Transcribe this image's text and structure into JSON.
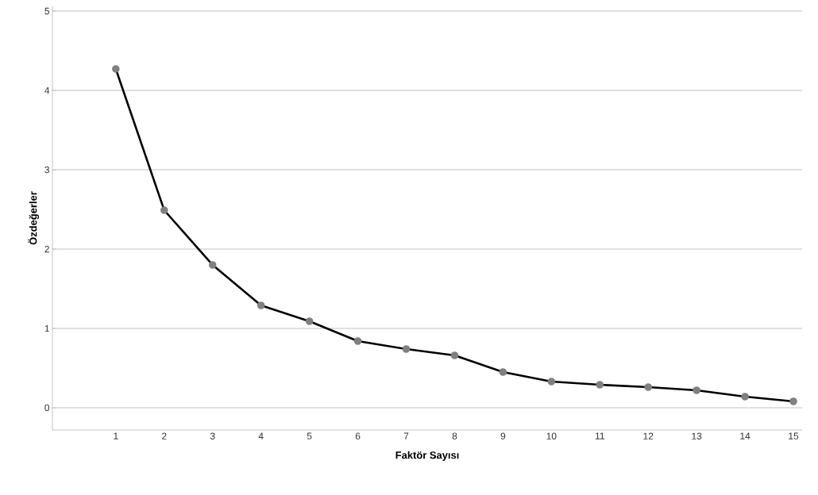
{
  "chart_data": {
    "type": "line",
    "xlabel": "Faktör Sayısı",
    "ylabel": "Özdeğerler",
    "categories": [
      "1",
      "2",
      "3",
      "4",
      "5",
      "6",
      "7",
      "8",
      "9",
      "10",
      "11",
      "12",
      "13",
      "14",
      "15"
    ],
    "values": [
      4.27,
      2.49,
      1.8,
      1.29,
      1.09,
      0.84,
      0.74,
      0.66,
      0.45,
      0.33,
      0.29,
      0.26,
      0.22,
      0.14,
      0.08
    ],
    "color": "#000000",
    "marker": "circle",
    "line_style": "solid",
    "ylim": [
      -0.28,
      5.06
    ],
    "yticks": [
      0,
      1,
      2,
      3,
      4,
      5
    ],
    "grid": "y"
  }
}
